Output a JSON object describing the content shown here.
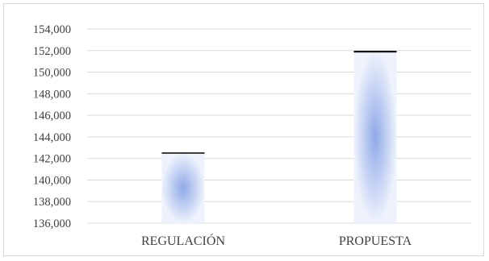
{
  "chart_data": {
    "type": "bar",
    "categories": [
      "REGULACIÓN",
      "PROPUESTA"
    ],
    "values": [
      142500,
      151900
    ],
    "ylim": [
      136000,
      154000
    ],
    "ytick_step": 2000,
    "yticks": [
      "136,000",
      "138,000",
      "140,000",
      "142,000",
      "144,000",
      "146,000",
      "148,000",
      "150,000",
      "152,000",
      "154,000"
    ],
    "grid": true,
    "legend": "none",
    "bar_style": "gradient",
    "colors": {
      "bar_center": "#8fa9e8",
      "bar_edge": "#eef2fc",
      "bar_top": "#000000",
      "grid": "#d9d9d9",
      "text": "#404040"
    }
  }
}
